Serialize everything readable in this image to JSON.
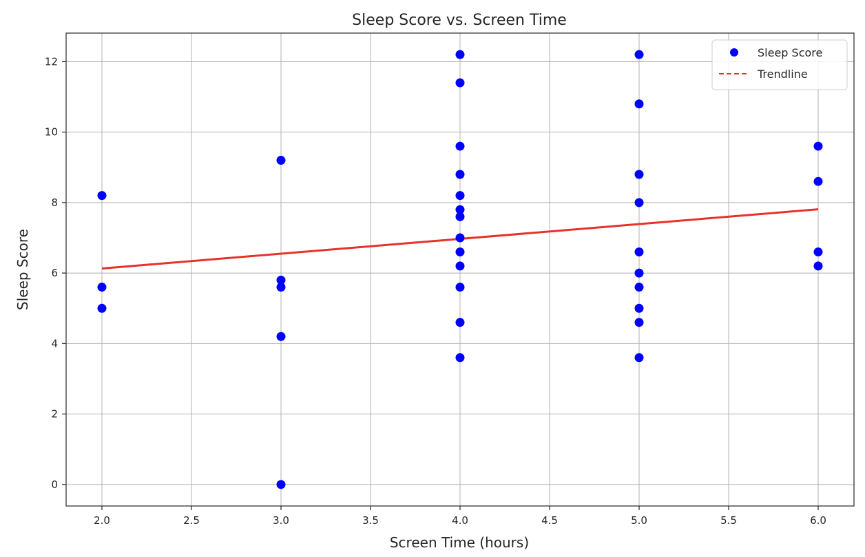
{
  "chart_data": {
    "type": "scatter",
    "title": "Sleep Score vs. Screen Time",
    "xlabel": "Screen Time (hours)",
    "ylabel": "Sleep Score",
    "xlim": [
      1.8,
      6.2
    ],
    "ylim": [
      -0.61,
      12.81
    ],
    "xticks": [
      2.0,
      2.5,
      3.0,
      3.5,
      4.0,
      4.5,
      5.0,
      5.5,
      6.0
    ],
    "xtick_labels": [
      "2.0",
      "2.5",
      "3.0",
      "3.5",
      "4.0",
      "4.5",
      "5.0",
      "5.5",
      "6.0"
    ],
    "yticks": [
      0,
      2,
      4,
      6,
      8,
      10,
      12
    ],
    "ytick_labels": [
      "0",
      "2",
      "4",
      "6",
      "8",
      "10",
      "12"
    ],
    "grid": true,
    "legend_position": "top-right",
    "series": [
      {
        "name": "Sleep Score",
        "kind": "scatter",
        "color": "#0000ff",
        "points": [
          [
            2,
            8.2
          ],
          [
            2,
            5.6
          ],
          [
            2,
            5.0
          ],
          [
            3,
            9.2
          ],
          [
            3,
            5.8
          ],
          [
            3,
            5.6
          ],
          [
            3,
            4.2
          ],
          [
            3,
            0.0
          ],
          [
            4,
            12.2
          ],
          [
            4,
            11.4
          ],
          [
            4,
            9.6
          ],
          [
            4,
            8.8
          ],
          [
            4,
            8.2
          ],
          [
            4,
            7.8
          ],
          [
            4,
            7.6
          ],
          [
            4,
            7.0
          ],
          [
            4,
            6.6
          ],
          [
            4,
            6.2
          ],
          [
            4,
            5.6
          ],
          [
            4,
            4.6
          ],
          [
            4,
            3.6
          ],
          [
            5,
            12.2
          ],
          [
            5,
            10.8
          ],
          [
            5,
            8.8
          ],
          [
            5,
            8.0
          ],
          [
            5,
            6.6
          ],
          [
            5,
            6.0
          ],
          [
            5,
            5.6
          ],
          [
            5,
            5.0
          ],
          [
            5,
            4.6
          ],
          [
            5,
            3.6
          ],
          [
            6,
            9.6
          ],
          [
            6,
            8.6
          ],
          [
            6,
            6.6
          ],
          [
            6,
            6.2
          ]
        ]
      },
      {
        "name": "Trendline",
        "kind": "line",
        "style": "dashed",
        "color": "#e8312a",
        "points": [
          [
            2,
            6.13
          ],
          [
            6,
            7.81
          ]
        ]
      }
    ]
  }
}
